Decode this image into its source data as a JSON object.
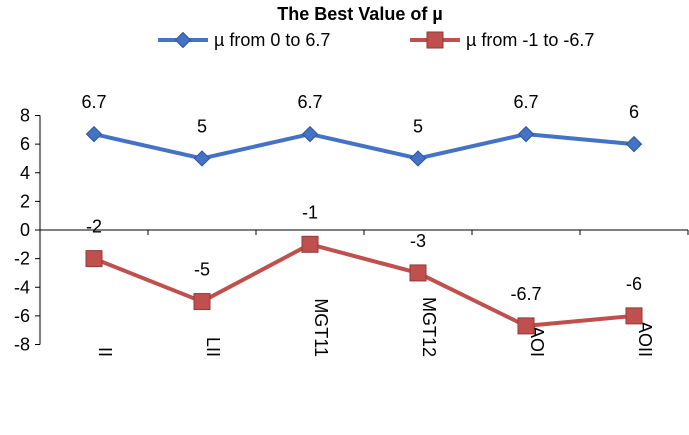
{
  "chart_data": {
    "type": "line",
    "title": "The Best Value of µ",
    "categories": [
      "II",
      "LII",
      "MGT11",
      "MGT12",
      "AOI",
      "AOII"
    ],
    "series": [
      {
        "name": "µ from 0 to 6.7",
        "values": [
          6.7,
          5,
          6.7,
          5,
          6.7,
          6
        ],
        "labels": [
          "6.7",
          "5",
          "6.7",
          "5",
          "6.7",
          "6"
        ],
        "color": "#4472c4",
        "marker": "diamond"
      },
      {
        "name": "µ from -1 to -6.7",
        "values": [
          -2,
          -5,
          -1,
          -3,
          -6.7,
          -6
        ],
        "labels": [
          "-2",
          "-5",
          "-1",
          "-3",
          "-6.7",
          "-6"
        ],
        "color": "#c0504d",
        "marker": "square"
      }
    ],
    "yticks": [
      "8",
      "6",
      "4",
      "2",
      "0",
      "-2",
      "-4",
      "-6",
      "-8"
    ],
    "ylim": [
      -8,
      8
    ],
    "xlabel": "",
    "ylabel": "",
    "grid": false,
    "legend_position": "top"
  }
}
